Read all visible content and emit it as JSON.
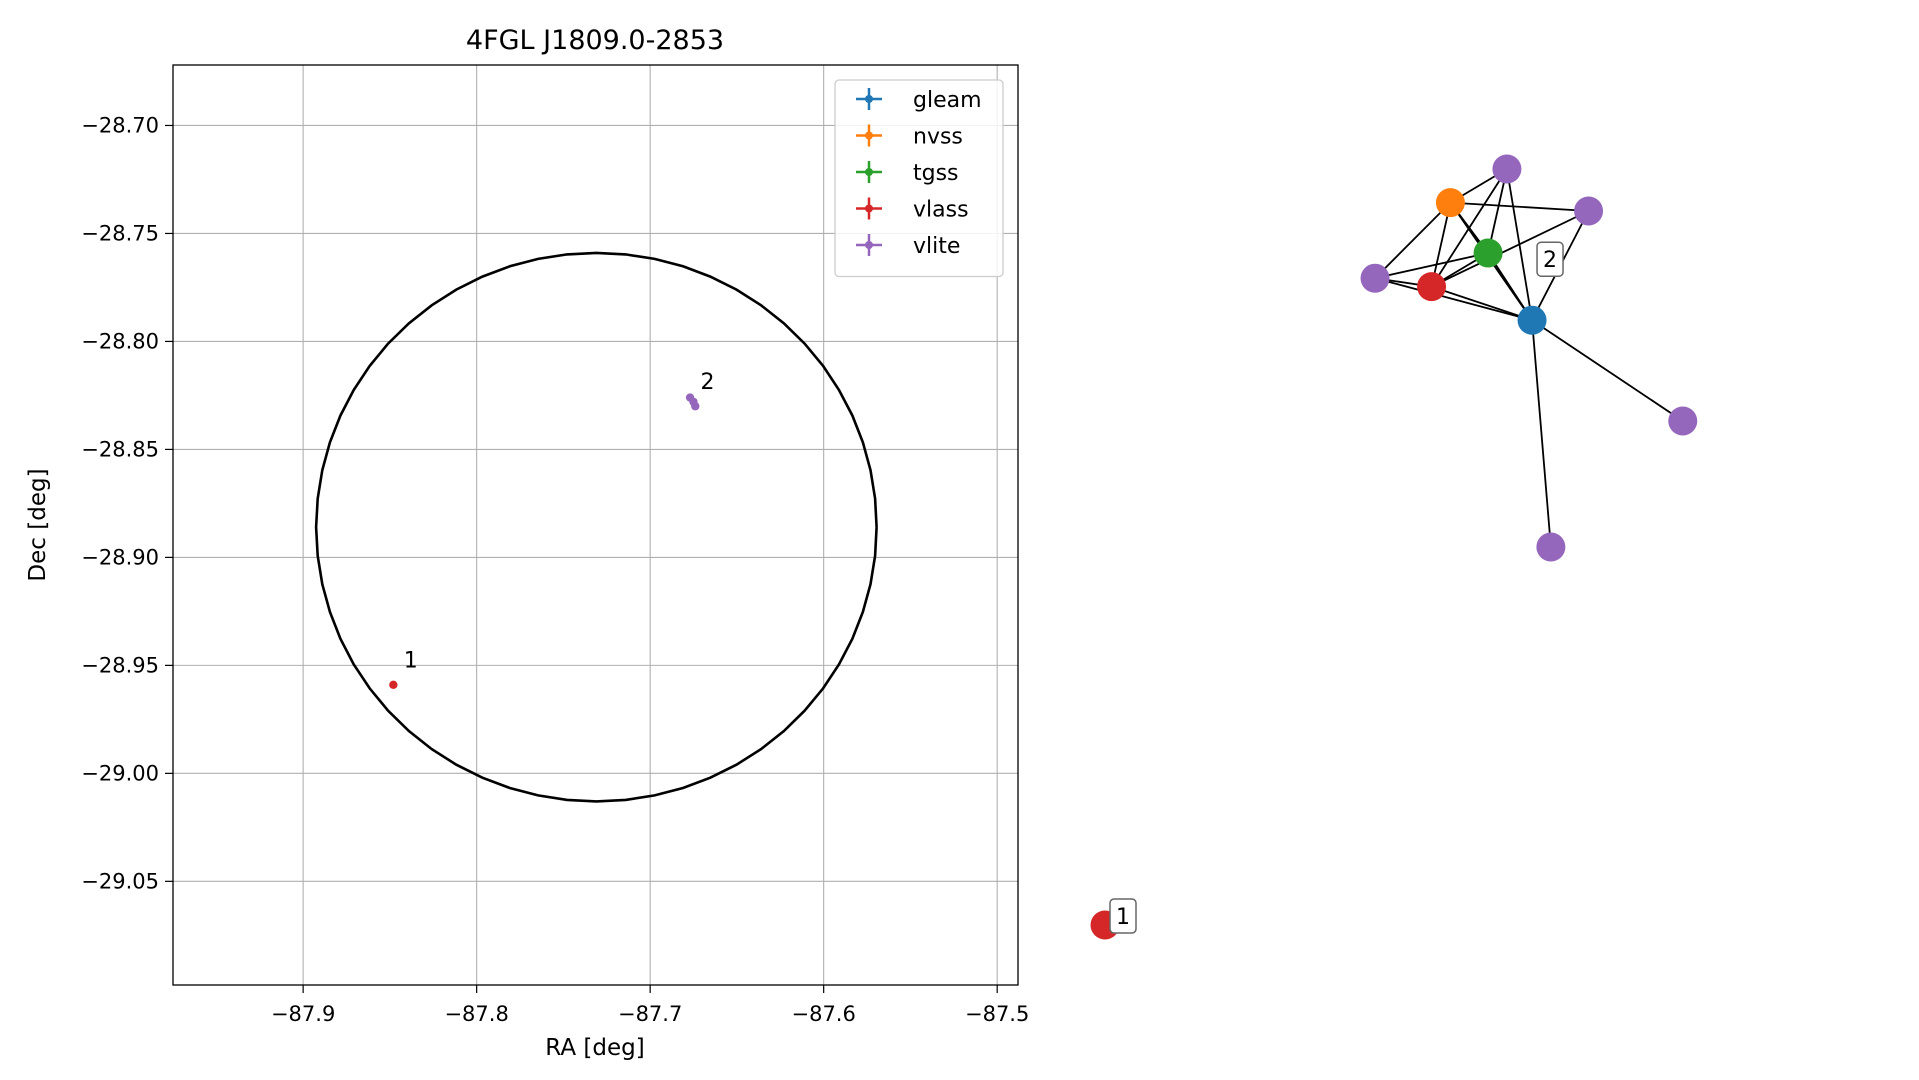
{
  "chart_data": [
    {
      "type": "scatter",
      "title": "4FGL J1809.0-2853",
      "xlabel": "RA [deg]",
      "ylabel": "Dec [deg]",
      "xlim": [
        -87.975,
        -87.488
      ],
      "ylim": [
        -29.098,
        -28.672
      ],
      "xticks": [
        -87.9,
        -87.8,
        -87.7,
        -87.6,
        -87.5
      ],
      "xtick_labels": [
        "−87.9",
        "−87.8",
        "−87.7",
        "−87.6",
        "−87.5"
      ],
      "yticks": [
        -28.7,
        -28.75,
        -28.8,
        -28.85,
        -28.9,
        -28.95,
        -29.0,
        -29.05
      ],
      "ytick_labels": [
        "−28.70",
        "−28.75",
        "−28.80",
        "−28.85",
        "−28.90",
        "−28.95",
        "−29.00",
        "−29.05"
      ],
      "grid": true,
      "legend_position": "top-right",
      "ellipse": {
        "center": [
          -87.731,
          -28.886
        ],
        "semi_axis_ra": 0.1615,
        "semi_axis_dec": 0.127,
        "color": "#000000"
      },
      "series": [
        {
          "name": "gleam",
          "color": "#1f77b4",
          "points": []
        },
        {
          "name": "nvss",
          "color": "#ff7f0e",
          "points": []
        },
        {
          "name": "tgss",
          "color": "#2ca02c",
          "points": []
        },
        {
          "name": "vlass",
          "color": "#d62728",
          "points": [
            [
              -87.848,
              -28.959
            ]
          ]
        },
        {
          "name": "vlite",
          "color": "#9467bd",
          "points": [
            [
              -87.677,
              -28.826
            ],
            [
              -87.675,
              -28.828
            ],
            [
              -87.674,
              -28.83
            ]
          ]
        }
      ],
      "annotations": [
        {
          "text": "1",
          "x": -87.842,
          "y": -28.951
        },
        {
          "text": "2",
          "x": -87.671,
          "y": -28.822
        }
      ]
    },
    {
      "type": "network",
      "nodes": [
        {
          "id": "vlite_a",
          "color": "#9467bd",
          "x": 0.64,
          "y": 0.9
        },
        {
          "id": "nvss",
          "color": "#ff7f0e",
          "x": 0.55,
          "y": 0.86
        },
        {
          "id": "vlite_b",
          "color": "#9467bd",
          "x": 0.77,
          "y": 0.85
        },
        {
          "id": "tgss",
          "color": "#2ca02c",
          "x": 0.61,
          "y": 0.8
        },
        {
          "id": "vlite_c",
          "color": "#9467bd",
          "x": 0.43,
          "y": 0.77
        },
        {
          "id": "vlass_a",
          "color": "#d62728",
          "x": 0.52,
          "y": 0.76
        },
        {
          "id": "gleam",
          "color": "#1f77b4",
          "x": 0.68,
          "y": 0.72
        },
        {
          "id": "vlite_d",
          "color": "#9467bd",
          "x": 0.92,
          "y": 0.6
        },
        {
          "id": "vlite_e",
          "color": "#9467bd",
          "x": 0.71,
          "y": 0.45
        },
        {
          "id": "vlass_b",
          "color": "#d62728",
          "x": 0.0,
          "y": 0.0
        }
      ],
      "edges": [
        [
          "nvss",
          "vlite_a"
        ],
        [
          "nvss",
          "vlite_b"
        ],
        [
          "nvss",
          "vlite_c"
        ],
        [
          "nvss",
          "tgss"
        ],
        [
          "nvss",
          "vlass_a"
        ],
        [
          "nvss",
          "gleam"
        ],
        [
          "vlite_a",
          "tgss"
        ],
        [
          "vlite_a",
          "vlass_a"
        ],
        [
          "vlite_a",
          "gleam"
        ],
        [
          "vlite_b",
          "vlass_a"
        ],
        [
          "vlite_b",
          "gleam"
        ],
        [
          "tgss",
          "vlite_c"
        ],
        [
          "tgss",
          "vlass_a"
        ],
        [
          "tgss",
          "gleam"
        ],
        [
          "vlite_c",
          "vlass_a"
        ],
        [
          "vlite_c",
          "gleam"
        ],
        [
          "vlass_a",
          "gleam"
        ],
        [
          "gleam",
          "vlite_d"
        ],
        [
          "gleam",
          "vlite_e"
        ]
      ],
      "labels": [
        {
          "text": "2",
          "node": "gleam"
        },
        {
          "text": "1",
          "node": "vlass_b"
        }
      ]
    }
  ]
}
